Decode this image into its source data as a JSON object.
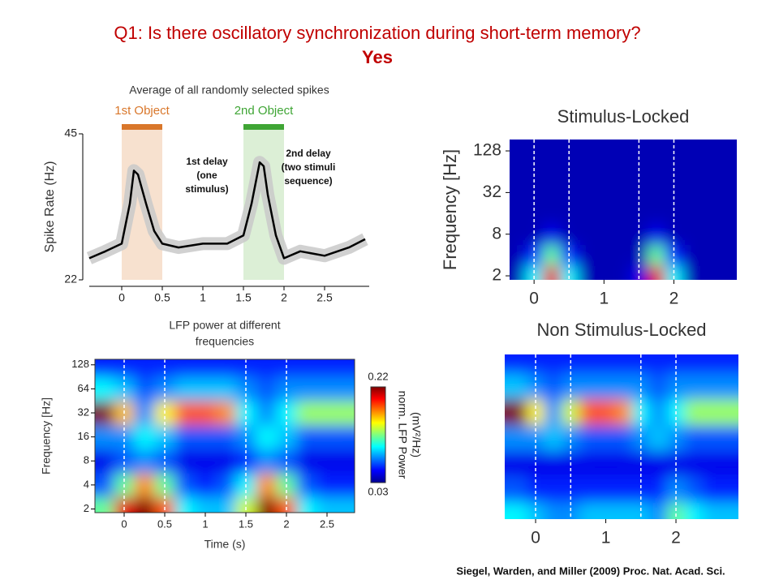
{
  "title": "Q1: Is there oscillatory synchronization during short-term memory?",
  "subtitle": "Yes",
  "citation": "Siegel, Warden, and Miller (2009) Proc. Nat. Acad. Sci.",
  "chart_data": [
    {
      "type": "line",
      "title": [
        "Average of all randomly selected spikes"
      ],
      "ylabel": "Spike Rate (Hz)",
      "x": [
        -0.4,
        -0.2,
        0,
        0.1,
        0.15,
        0.2,
        0.3,
        0.4,
        0.5,
        0.7,
        1.0,
        1.3,
        1.5,
        1.6,
        1.7,
        1.75,
        1.8,
        1.9,
        2.0,
        2.2,
        2.5,
        2.8,
        3.0
      ],
      "values": [
        25.4,
        26.5,
        27.7,
        34,
        39.2,
        38.6,
        34,
        29.7,
        27.7,
        27.1,
        27.7,
        27.7,
        29,
        34,
        40.5,
        39.9,
        35.4,
        29,
        25.4,
        26.5,
        25.8,
        27.1,
        28.4
      ],
      "color": "#000000",
      "xlim": [
        -0.4,
        3.05
      ],
      "xticks": [
        0,
        0.5,
        1,
        1.5,
        2,
        2.5
      ],
      "ylim": [
        22,
        45
      ],
      "yticks": [
        22,
        45
      ],
      "spans": [
        {
          "label": "1st Object",
          "x": [
            0,
            0.5
          ],
          "color": "#d9772b",
          "shade": "#f7e1cf"
        },
        {
          "label": "2nd Object",
          "x": [
            1.5,
            2
          ],
          "color": "#3fa535",
          "shade": "#dcefd6"
        }
      ],
      "notes": [
        [
          "1st delay",
          "(one",
          "stimulus)"
        ],
        [
          "2nd  delay",
          "(two stimuli",
          "sequence)"
        ]
      ]
    },
    {
      "type": "heatmap",
      "title": [
        "LFP power at different",
        "frequencies"
      ],
      "xlabel": "Time (s)",
      "ylabel": "Frequency [Hz]",
      "x": [
        -0.25,
        0,
        0.25,
        0.5,
        0.75,
        1,
        1.25,
        1.5,
        1.75,
        2,
        2.25,
        2.5,
        2.75
      ],
      "y": [
        2,
        4,
        8,
        16,
        32,
        64,
        128
      ],
      "z": [
        [
          0.12,
          0.2,
          0.22,
          0.18,
          0.1,
          0.09,
          0.09,
          0.14,
          0.22,
          0.18,
          0.1,
          0.09,
          0.09
        ],
        [
          0.07,
          0.12,
          0.17,
          0.12,
          0.07,
          0.06,
          0.07,
          0.1,
          0.17,
          0.12,
          0.07,
          0.06,
          0.06
        ],
        [
          0.05,
          0.07,
          0.08,
          0.07,
          0.05,
          0.05,
          0.05,
          0.06,
          0.08,
          0.07,
          0.05,
          0.05,
          0.05
        ],
        [
          0.08,
          0.08,
          0.1,
          0.09,
          0.07,
          0.07,
          0.07,
          0.08,
          0.1,
          0.09,
          0.07,
          0.07,
          0.07
        ],
        [
          0.22,
          0.16,
          0.08,
          0.15,
          0.18,
          0.18,
          0.17,
          0.1,
          0.08,
          0.1,
          0.13,
          0.13,
          0.13
        ],
        [
          0.1,
          0.09,
          0.07,
          0.08,
          0.09,
          0.09,
          0.09,
          0.08,
          0.07,
          0.08,
          0.08,
          0.08,
          0.08
        ],
        [
          0.06,
          0.06,
          0.06,
          0.06,
          0.06,
          0.06,
          0.06,
          0.06,
          0.06,
          0.06,
          0.06,
          0.06,
          0.06
        ]
      ],
      "zlim": [
        0.03,
        0.22
      ],
      "colorbar_ticks": [
        0.03,
        0.22
      ],
      "colorbar_label": [
        "norm. LFP Power",
        "(mV²/Hz)"
      ],
      "xlim": [
        -0.36,
        2.84
      ],
      "xticks": [
        0,
        0.5,
        1,
        1.5,
        2,
        2.5
      ],
      "ylim": [
        1.8,
        150
      ],
      "yticks": [
        2,
        4,
        8,
        16,
        32,
        64,
        128
      ],
      "log_y": true,
      "vlines": [
        0,
        0.5,
        1.5,
        2
      ]
    },
    {
      "type": "heatmap",
      "title": [
        "Stimulus-Locked"
      ],
      "ylabel": "Frequency [Hz]",
      "x": [
        -0.25,
        0,
        0.25,
        0.5,
        0.75,
        1,
        1.25,
        1.5,
        1.75,
        2,
        2.25,
        2.5,
        2.75
      ],
      "y": [
        2,
        4,
        8,
        16,
        32,
        64,
        128
      ],
      "z": [
        [
          0.04,
          0.1,
          0.2,
          0.1,
          0.04,
          0.04,
          0.04,
          0.05,
          0.2,
          0.1,
          0.04,
          0.04,
          0.04
        ],
        [
          0.04,
          0.06,
          0.12,
          0.06,
          0.04,
          0.04,
          0.04,
          0.04,
          0.12,
          0.06,
          0.04,
          0.04,
          0.04
        ],
        [
          0.04,
          0.04,
          0.05,
          0.04,
          0.04,
          0.04,
          0.04,
          0.04,
          0.05,
          0.04,
          0.04,
          0.04,
          0.04
        ],
        [
          0.04,
          0.04,
          0.04,
          0.04,
          0.04,
          0.04,
          0.04,
          0.04,
          0.04,
          0.04,
          0.04,
          0.04,
          0.04
        ],
        [
          0.04,
          0.04,
          0.04,
          0.04,
          0.04,
          0.04,
          0.04,
          0.04,
          0.04,
          0.04,
          0.04,
          0.04,
          0.04
        ],
        [
          0.04,
          0.04,
          0.04,
          0.04,
          0.04,
          0.04,
          0.04,
          0.04,
          0.04,
          0.04,
          0.04,
          0.04,
          0.04
        ],
        [
          0.04,
          0.04,
          0.04,
          0.04,
          0.04,
          0.04,
          0.04,
          0.04,
          0.04,
          0.04,
          0.04,
          0.04,
          0.04
        ]
      ],
      "zlim": [
        0.03,
        0.22
      ],
      "xlim": [
        -0.35,
        2.9
      ],
      "xticks": [
        0,
        1,
        2
      ],
      "ylim": [
        1.75,
        187
      ],
      "yticks": [
        2,
        8,
        32,
        128
      ],
      "log_y": true,
      "vlines": [
        0,
        0.5,
        1.5,
        2
      ]
    },
    {
      "type": "heatmap",
      "title": [
        "Non Stimulus-Locked"
      ],
      "x": [
        -0.25,
        0,
        0.25,
        0.5,
        0.75,
        1,
        1.25,
        1.5,
        1.75,
        2,
        2.25,
        2.5,
        2.75
      ],
      "y": [
        2,
        4,
        8,
        16,
        32,
        64,
        128
      ],
      "z": [
        [
          0.1,
          0.09,
          0.08,
          0.08,
          0.09,
          0.09,
          0.09,
          0.09,
          0.08,
          0.12,
          0.1,
          0.09,
          0.09
        ],
        [
          0.07,
          0.06,
          0.06,
          0.06,
          0.06,
          0.06,
          0.06,
          0.06,
          0.06,
          0.08,
          0.07,
          0.06,
          0.06
        ],
        [
          0.05,
          0.05,
          0.05,
          0.05,
          0.05,
          0.05,
          0.05,
          0.05,
          0.05,
          0.05,
          0.05,
          0.05,
          0.05
        ],
        [
          0.08,
          0.08,
          0.09,
          0.08,
          0.07,
          0.07,
          0.07,
          0.08,
          0.09,
          0.08,
          0.07,
          0.07,
          0.07
        ],
        [
          0.22,
          0.15,
          0.08,
          0.14,
          0.18,
          0.18,
          0.17,
          0.1,
          0.08,
          0.1,
          0.13,
          0.13,
          0.13
        ],
        [
          0.09,
          0.08,
          0.07,
          0.08,
          0.08,
          0.08,
          0.08,
          0.08,
          0.07,
          0.08,
          0.08,
          0.08,
          0.08
        ],
        [
          0.06,
          0.06,
          0.06,
          0.06,
          0.06,
          0.06,
          0.06,
          0.06,
          0.06,
          0.06,
          0.06,
          0.06,
          0.06
        ]
      ],
      "zlim": [
        0.03,
        0.22
      ],
      "xlim": [
        -0.44,
        2.89
      ],
      "xticks": [
        0,
        1,
        2
      ],
      "ylim": [
        1.8,
        150
      ],
      "log_y": true,
      "vlines": [
        0,
        0.5,
        1.5,
        2
      ]
    }
  ]
}
